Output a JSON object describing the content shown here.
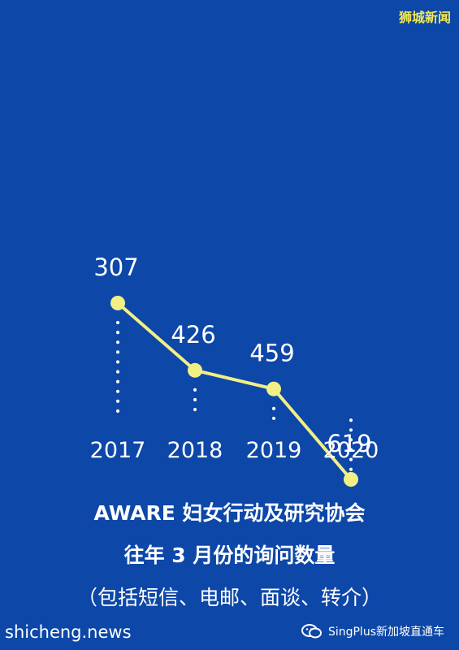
{
  "brand": "狮城新闻",
  "chart_data": {
    "type": "line",
    "categories": [
      "2017",
      "2018",
      "2019",
      "2020"
    ],
    "values": [
      307,
      426,
      459,
      619
    ],
    "title": "",
    "xlabel": "",
    "ylabel": "",
    "grid": false,
    "legend": "none",
    "colors": {
      "background": "#0d47a8",
      "line": "#f2ef85",
      "point": "#f2ef85",
      "dotted_guides": "#ffffff",
      "text": "#ffffff"
    }
  },
  "caption": {
    "line1": "AWARE 妇女行动及研究协会",
    "line2": "往年 3 月份的询问数量",
    "line3": "（包括短信、电邮、面谈、转介）"
  },
  "footer": {
    "left_watermark": "shicheng.news",
    "right_label": "SingPlus新加坡直通车",
    "right_icon": "wechat-icon"
  }
}
